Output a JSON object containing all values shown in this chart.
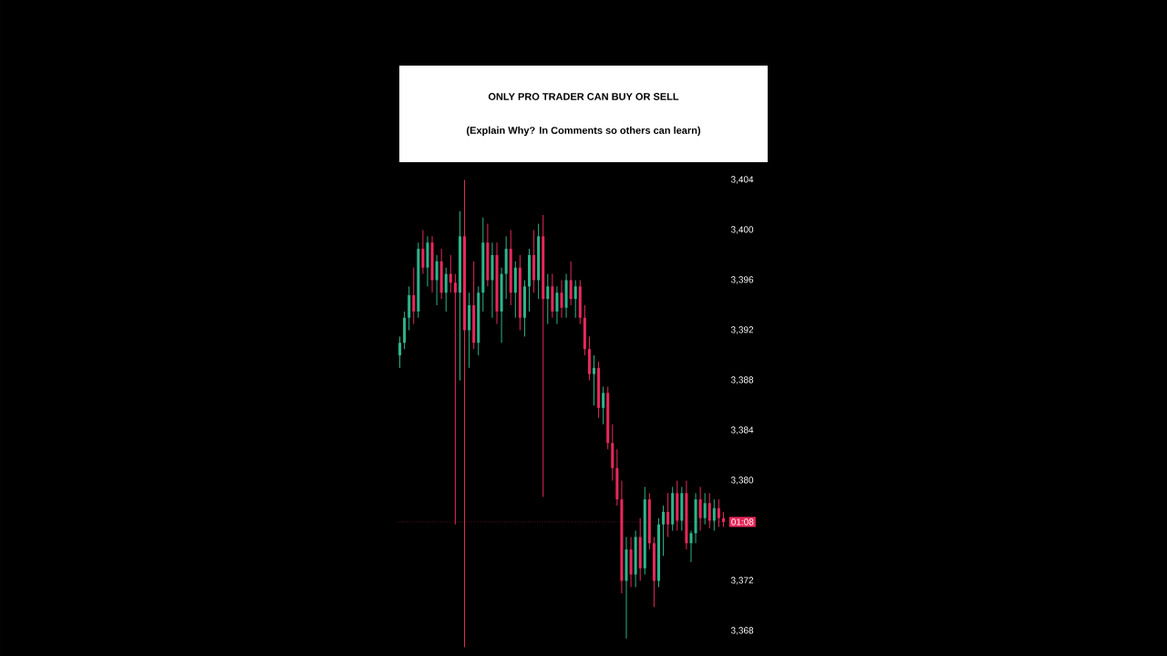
{
  "chart_data": {
    "type": "candlestick",
    "title": "ONLY PRO TRADER CAN BUY OR SELL",
    "subtitle": "(Explain Why? In Comments so others can learn)",
    "categories": [
      null,
      null,
      null,
      null,
      null,
      null,
      null,
      null,
      null,
      null,
      null,
      null,
      null,
      null,
      null,
      null,
      null,
      null,
      null,
      null,
      null,
      null,
      null,
      null,
      null,
      null,
      null,
      null,
      null,
      null,
      null,
      null,
      null,
      null,
      null,
      null,
      null,
      null,
      null,
      null,
      null,
      null,
      null,
      null,
      null,
      null,
      null,
      null,
      null,
      null,
      null,
      null,
      null,
      null,
      null,
      null,
      null,
      null,
      null,
      null,
      null,
      null,
      null,
      null,
      null,
      null,
      null,
      null,
      null,
      null,
      null
    ],
    "ohlc": [
      [
        3390.0,
        3391.5,
        3389.0,
        3391.0
      ],
      [
        3391.0,
        3393.5,
        3390.5,
        3393.0
      ],
      [
        3393.0,
        3395.5,
        3392.0,
        3394.8
      ],
      [
        3394.8,
        3397.0,
        3392.5,
        3393.5
      ],
      [
        3393.5,
        3399.0,
        3393.0,
        3398.5
      ],
      [
        3398.5,
        3400.0,
        3396.5,
        3397.0
      ],
      [
        3397.0,
        3399.5,
        3395.5,
        3399.0
      ],
      [
        3399.0,
        3399.5,
        3395.0,
        3396.0
      ],
      [
        3396.0,
        3398.0,
        3394.0,
        3397.5
      ],
      [
        3397.5,
        3398.5,
        3394.5,
        3395.0
      ],
      [
        3395.0,
        3397.0,
        3393.5,
        3396.5
      ],
      [
        3396.5,
        3398.0,
        3395.0,
        3395.8
      ],
      [
        3395.8,
        3396.5,
        3376.5,
        3395.0
      ],
      [
        3395.0,
        3401.5,
        3388.0,
        3399.5
      ],
      [
        3399.5,
        3404.0,
        3366.7,
        3392.0
      ],
      [
        3392.0,
        3395.0,
        3389.0,
        3394.0
      ],
      [
        3394.0,
        3397.5,
        3390.5,
        3391.0
      ],
      [
        3391.0,
        3395.5,
        3390.0,
        3395.0
      ],
      [
        3395.0,
        3401.0,
        3393.5,
        3399.0
      ],
      [
        3399.0,
        3400.5,
        3395.5,
        3396.0
      ],
      [
        3396.0,
        3399.0,
        3393.0,
        3398.0
      ],
      [
        3398.0,
        3399.0,
        3392.5,
        3393.5
      ],
      [
        3393.5,
        3397.0,
        3391.0,
        3396.5
      ],
      [
        3396.5,
        3399.5,
        3394.5,
        3398.5
      ],
      [
        3398.5,
        3400.0,
        3394.0,
        3395.0
      ],
      [
        3395.0,
        3397.5,
        3393.0,
        3397.0
      ],
      [
        3397.0,
        3398.0,
        3392.0,
        3393.0
      ],
      [
        3393.0,
        3396.0,
        3391.5,
        3395.5
      ],
      [
        3395.5,
        3398.5,
        3393.5,
        3398.0
      ],
      [
        3398.0,
        3400.0,
        3395.0,
        3396.0
      ],
      [
        3396.0,
        3400.5,
        3394.5,
        3399.5
      ],
      [
        3399.5,
        3401.2,
        3378.7,
        3394.5
      ],
      [
        3394.5,
        3396.5,
        3392.5,
        3395.5
      ],
      [
        3395.5,
        3396.5,
        3393.0,
        3393.5
      ],
      [
        3393.5,
        3395.5,
        3392.5,
        3395.0
      ],
      [
        3395.0,
        3396.0,
        3393.0,
        3393.8
      ],
      [
        3393.8,
        3396.5,
        3393.0,
        3396.0
      ],
      [
        3396.0,
        3397.5,
        3394.0,
        3394.5
      ],
      [
        3394.5,
        3396.0,
        3393.0,
        3395.5
      ],
      [
        3395.5,
        3396.0,
        3392.5,
        3393.0
      ],
      [
        3393.0,
        3394.0,
        3390.0,
        3390.5
      ],
      [
        3390.5,
        3391.5,
        3388.0,
        3388.5
      ],
      [
        3388.5,
        3390.0,
        3386.0,
        3389.0
      ],
      [
        3389.0,
        3389.5,
        3385.0,
        3385.8
      ],
      [
        3385.8,
        3387.5,
        3384.5,
        3387.0
      ],
      [
        3387.0,
        3387.5,
        3382.5,
        3383.0
      ],
      [
        3383.0,
        3384.5,
        3380.0,
        3381.0
      ],
      [
        3381.0,
        3382.5,
        3378.0,
        3378.5
      ],
      [
        3378.5,
        3380.0,
        3371.0,
        3372.0
      ],
      [
        3372.0,
        3375.5,
        3367.4,
        3374.5
      ],
      [
        3374.5,
        3375.5,
        3371.5,
        3372.5
      ],
      [
        3372.5,
        3376.0,
        3371.5,
        3375.5
      ],
      [
        3375.5,
        3377.0,
        3372.0,
        3373.0
      ],
      [
        3373.0,
        3379.5,
        3372.5,
        3378.5
      ],
      [
        3378.5,
        3379.0,
        3374.5,
        3375.0
      ],
      [
        3375.0,
        3375.5,
        3369.9,
        3372.0
      ],
      [
        3372.0,
        3377.0,
        3371.5,
        3376.5
      ],
      [
        3376.5,
        3378.0,
        3374.0,
        3377.5
      ],
      [
        3377.5,
        3379.0,
        3375.5,
        3376.5
      ],
      [
        3376.5,
        3379.5,
        3376.0,
        3379.0
      ],
      [
        3379.0,
        3380.0,
        3376.0,
        3376.8
      ],
      [
        3376.8,
        3379.5,
        3376.0,
        3379.0
      ],
      [
        3379.0,
        3380.0,
        3374.5,
        3375.0
      ],
      [
        3375.0,
        3376.0,
        3373.5,
        3375.8
      ],
      [
        3375.8,
        3379.0,
        3375.0,
        3378.5
      ],
      [
        3378.5,
        3379.5,
        3376.0,
        3377.0
      ],
      [
        3377.0,
        3379.0,
        3376.5,
        3378.2
      ],
      [
        3378.2,
        3379.0,
        3376.2,
        3376.8
      ],
      [
        3376.8,
        3378.5,
        3376.0,
        3377.8
      ],
      [
        3377.8,
        3378.5,
        3376.3,
        3377.0
      ],
      [
        3377.0,
        3377.5,
        3376.3,
        3376.7
      ]
    ],
    "ylim": [
      3366.0,
      3404.0
    ],
    "yticks": [
      {
        "value": 3368,
        "label": "3,368"
      },
      {
        "value": 3372,
        "label": "3,372"
      },
      {
        "value": 3380,
        "label": "3,380"
      },
      {
        "value": 3384,
        "label": "3,384"
      },
      {
        "value": 3388,
        "label": "3,388"
      },
      {
        "value": 3392,
        "label": "3,392"
      },
      {
        "value": 3396,
        "label": "3,396"
      },
      {
        "value": 3400,
        "label": "3,400"
      },
      {
        "value": 3404,
        "label": "3,404"
      }
    ],
    "tick_labels": "y",
    "grid": false,
    "ref_lines": [
      {
        "axis": "y",
        "value": 3376.7,
        "color": "#e8285a",
        "line_style": "dotted"
      }
    ],
    "annotations": [
      "01:08"
    ]
  }
}
